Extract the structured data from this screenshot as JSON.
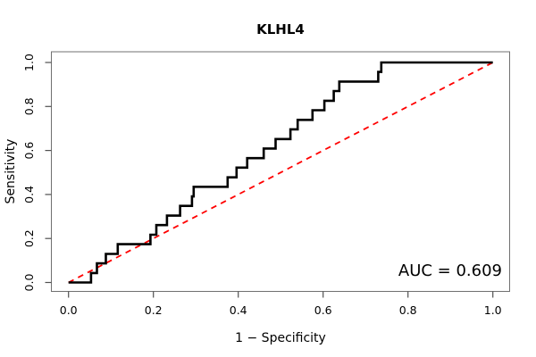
{
  "figure": {
    "title": "KLHL4",
    "x_axis_label": "1 − Specificity",
    "y_axis_label": "Sensitivity",
    "auc_text": "AUC = 0.609"
  },
  "chart_data": {
    "type": "line",
    "subtype": "roc-step-curve",
    "title": "KLHL4",
    "xlabel": "1 − Specificity",
    "ylabel": "Sensitivity",
    "xlim": [
      0,
      1
    ],
    "ylim": [
      0,
      1
    ],
    "grid": false,
    "legend": false,
    "x_ticks": [
      0.0,
      0.2,
      0.4,
      0.6,
      0.8,
      1.0
    ],
    "x_tick_labels": [
      "0.0",
      "0.2",
      "0.4",
      "0.6",
      "0.8",
      "1.0"
    ],
    "y_ticks": [
      0.0,
      0.2,
      0.4,
      0.6,
      0.8,
      1.0
    ],
    "y_tick_labels": [
      "0.0",
      "0.2",
      "0.4",
      "0.6",
      "0.8",
      "1.0"
    ],
    "auc": 0.609,
    "annotations": [
      {
        "text": "AUC = 0.609",
        "position": "bottom-right"
      }
    ],
    "colors": {
      "curve": "#000000",
      "reference_line": "#ff0000",
      "box": "#707070",
      "ticks": "#505050",
      "text": "#000000"
    },
    "series": [
      {
        "name": "ROC curve",
        "style": "solid",
        "step": true,
        "color": "#000000",
        "points": [
          [
            0.0,
            0.0
          ],
          [
            0.053,
            0.0
          ],
          [
            0.053,
            0.043
          ],
          [
            0.067,
            0.043
          ],
          [
            0.067,
            0.087
          ],
          [
            0.088,
            0.087
          ],
          [
            0.088,
            0.13
          ],
          [
            0.116,
            0.13
          ],
          [
            0.116,
            0.174
          ],
          [
            0.193,
            0.174
          ],
          [
            0.193,
            0.217
          ],
          [
            0.207,
            0.217
          ],
          [
            0.207,
            0.261
          ],
          [
            0.232,
            0.261
          ],
          [
            0.232,
            0.304
          ],
          [
            0.263,
            0.304
          ],
          [
            0.263,
            0.348
          ],
          [
            0.291,
            0.348
          ],
          [
            0.291,
            0.391
          ],
          [
            0.295,
            0.391
          ],
          [
            0.295,
            0.435
          ],
          [
            0.375,
            0.435
          ],
          [
            0.375,
            0.478
          ],
          [
            0.396,
            0.478
          ],
          [
            0.396,
            0.522
          ],
          [
            0.421,
            0.522
          ],
          [
            0.421,
            0.565
          ],
          [
            0.46,
            0.565
          ],
          [
            0.46,
            0.609
          ],
          [
            0.488,
            0.609
          ],
          [
            0.488,
            0.652
          ],
          [
            0.523,
            0.652
          ],
          [
            0.523,
            0.696
          ],
          [
            0.54,
            0.696
          ],
          [
            0.54,
            0.739
          ],
          [
            0.575,
            0.739
          ],
          [
            0.575,
            0.783
          ],
          [
            0.603,
            0.783
          ],
          [
            0.603,
            0.826
          ],
          [
            0.625,
            0.826
          ],
          [
            0.625,
            0.87
          ],
          [
            0.638,
            0.87
          ],
          [
            0.638,
            0.913
          ],
          [
            0.73,
            0.913
          ],
          [
            0.73,
            0.957
          ],
          [
            0.737,
            0.957
          ],
          [
            0.737,
            1.0
          ],
          [
            1.0,
            1.0
          ]
        ]
      },
      {
        "name": "reference diagonal",
        "style": "dashed",
        "step": false,
        "color": "#ff0000",
        "points": [
          [
            0,
            0
          ],
          [
            1,
            1
          ]
        ]
      }
    ]
  }
}
